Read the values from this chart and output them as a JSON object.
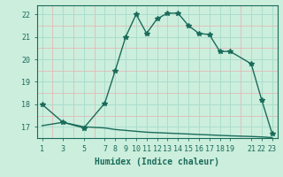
{
  "xlabel": "Humidex (Indice chaleur)",
  "ylabel": "",
  "bg_color": "#cceedd",
  "grid_color": "#aaddcc",
  "line_color": "#1a6b5a",
  "xlim": [
    0.5,
    23.5
  ],
  "ylim": [
    16.5,
    22.4
  ],
  "yticks": [
    17,
    18,
    19,
    20,
    21,
    22
  ],
  "xticks": [
    1,
    3,
    5,
    7,
    8,
    9,
    10,
    11,
    12,
    13,
    14,
    15,
    16,
    17,
    18,
    19,
    21,
    22,
    23
  ],
  "curve1_x": [
    1,
    3,
    5,
    7,
    8,
    9,
    10,
    11,
    12,
    13,
    14,
    15,
    16,
    17,
    18,
    19,
    21,
    22,
    23
  ],
  "curve1_y": [
    18.0,
    17.2,
    16.95,
    18.05,
    19.5,
    21.0,
    22.0,
    21.15,
    21.8,
    22.05,
    22.05,
    21.5,
    21.15,
    21.1,
    20.35,
    20.35,
    19.8,
    18.2,
    16.7
  ],
  "curve2_x": [
    1,
    3,
    5,
    7,
    8,
    9,
    10,
    11,
    12,
    13,
    14,
    15,
    16,
    17,
    18,
    19,
    21,
    22,
    23
  ],
  "curve2_y": [
    17.05,
    17.2,
    17.0,
    16.95,
    16.88,
    16.84,
    16.8,
    16.76,
    16.74,
    16.72,
    16.7,
    16.68,
    16.66,
    16.64,
    16.62,
    16.6,
    16.57,
    16.55,
    16.52
  ],
  "marker": "*",
  "markersize": 4,
  "linewidth": 1.0,
  "tick_fontsize": 6,
  "label_fontsize": 7
}
